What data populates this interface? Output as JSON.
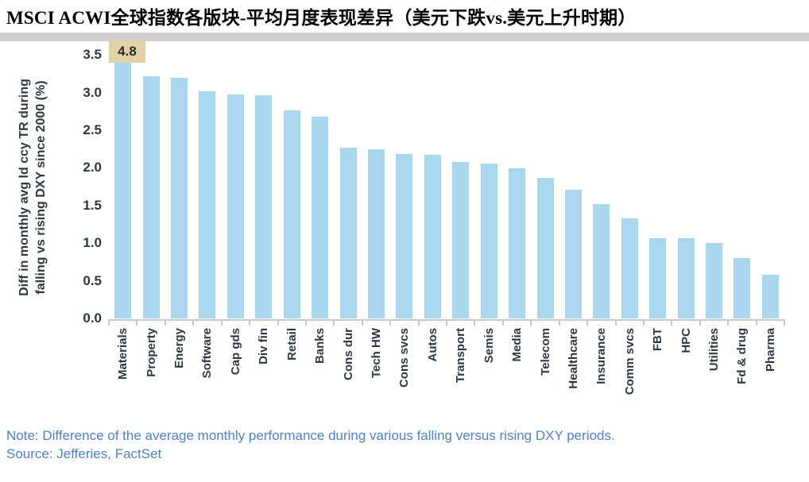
{
  "header": {
    "title": "MSCI ACWI全球指数各版块-平均月度表现差异（美元下跌vs.美元上升时期）"
  },
  "footer": {
    "note": "Note: Difference of the average monthly performance during various falling versus rising DXY periods.",
    "source": "Source: Jefferies, FactSet"
  },
  "colors": {
    "bar_fill": "#a9d7ed",
    "annotation_bg": "#e3d2a6",
    "axis_line": "#c8c8c8",
    "tick_text": "#30363f",
    "note_text": "#4f80cd",
    "band_gray": "#cfcfcf"
  },
  "chart_data": {
    "type": "bar",
    "title": "MSCI ACWI全球指数各版块-平均月度表现差异（美元下跌vs.美元上升时期）",
    "xlabel": "",
    "ylabel": "Diff in monthly avg ld ccy TR during falling vs rising DXY since 2000 (%)",
    "ylabel_lines": [
      "Diff in monthly avg ld ccy TR during",
      "falling vs rising DXY since 2000 (%)"
    ],
    "ylim": [
      0,
      3.5
    ],
    "yticks": [
      3.5,
      3.0,
      2.5,
      2.0,
      1.5,
      1.0,
      0.5,
      0.0
    ],
    "grid": false,
    "legend_position": "none",
    "categories": [
      "Materials",
      "Property",
      "Energy",
      "Software",
      "Cap gds",
      "Div fin",
      "Retail",
      "Banks",
      "Cons dur",
      "Tech HW",
      "Cons svcs",
      "Autos",
      "Transport",
      "Semis",
      "Media",
      "Telecom",
      "Healthcare",
      "Insurance",
      "Comm svcs",
      "FBT",
      "HPC",
      "Utilities",
      "Fd & drug",
      "Pharma"
    ],
    "values": [
      4.8,
      3.22,
      3.2,
      3.02,
      2.97,
      2.96,
      2.76,
      2.68,
      2.27,
      2.25,
      2.18,
      2.17,
      2.08,
      2.06,
      1.99,
      1.87,
      1.71,
      1.52,
      1.33,
      1.07,
      1.07,
      1.0,
      0.8,
      0.58
    ],
    "annotation": {
      "category": "Materials",
      "text": "4.8",
      "note": "bar clipped at top of plot area"
    }
  }
}
